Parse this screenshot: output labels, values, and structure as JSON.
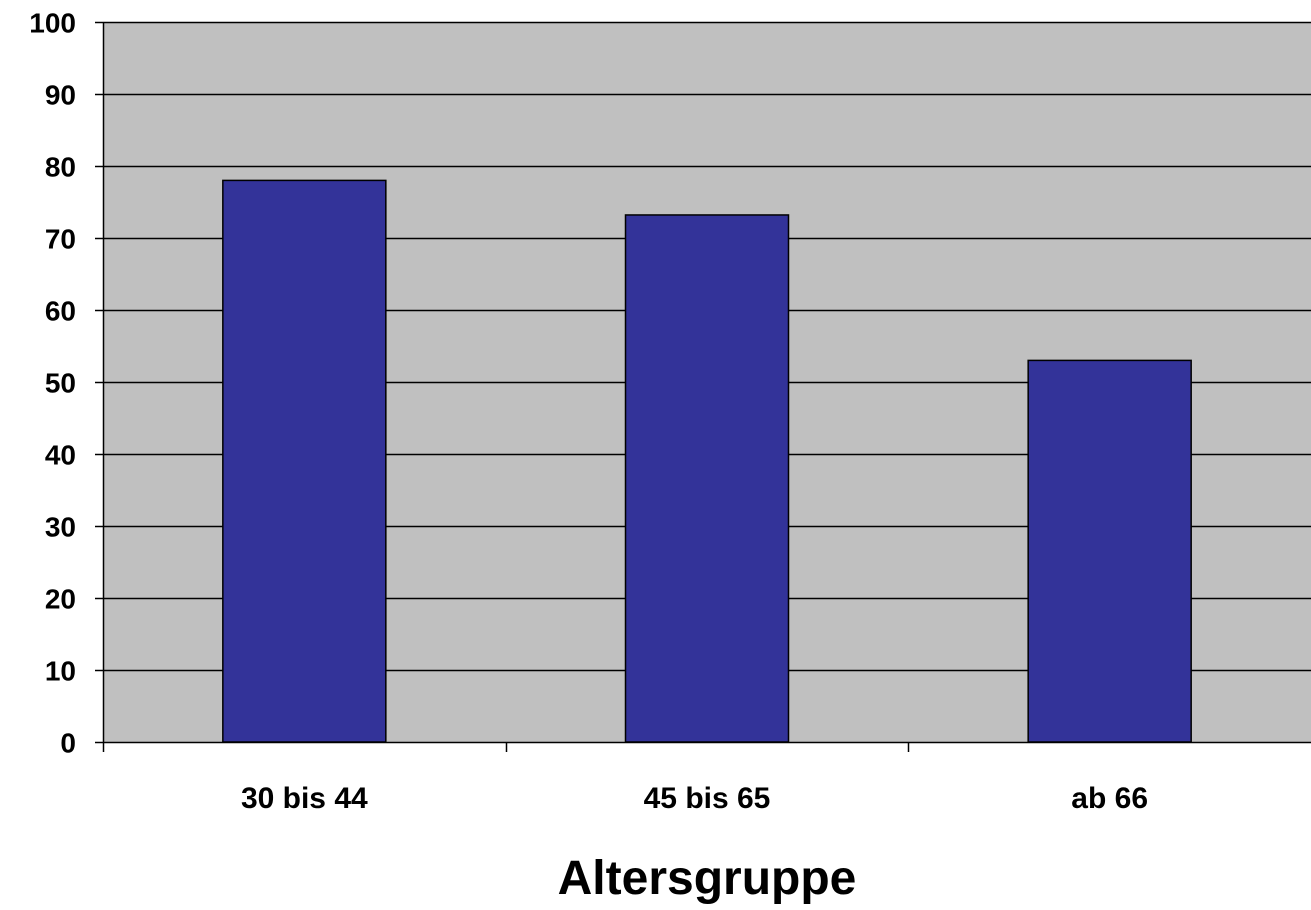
{
  "chart_data": {
    "type": "bar",
    "title": "",
    "xlabel": "Altersgruppe",
    "ylabel": "",
    "categories": [
      "30 bis 44",
      "45 bis 65",
      "ab 66"
    ],
    "values": [
      78,
      73.2,
      53
    ],
    "ylim": [
      0,
      100
    ],
    "yticks": [
      "0",
      "10",
      "20",
      "30",
      "40",
      "50",
      "60",
      "70",
      "80",
      "90",
      "100"
    ],
    "grid": true,
    "legend": "none",
    "colors": {
      "bar": "#333399",
      "plot_background": "#c0c0c0",
      "gridline": "#000000"
    }
  }
}
